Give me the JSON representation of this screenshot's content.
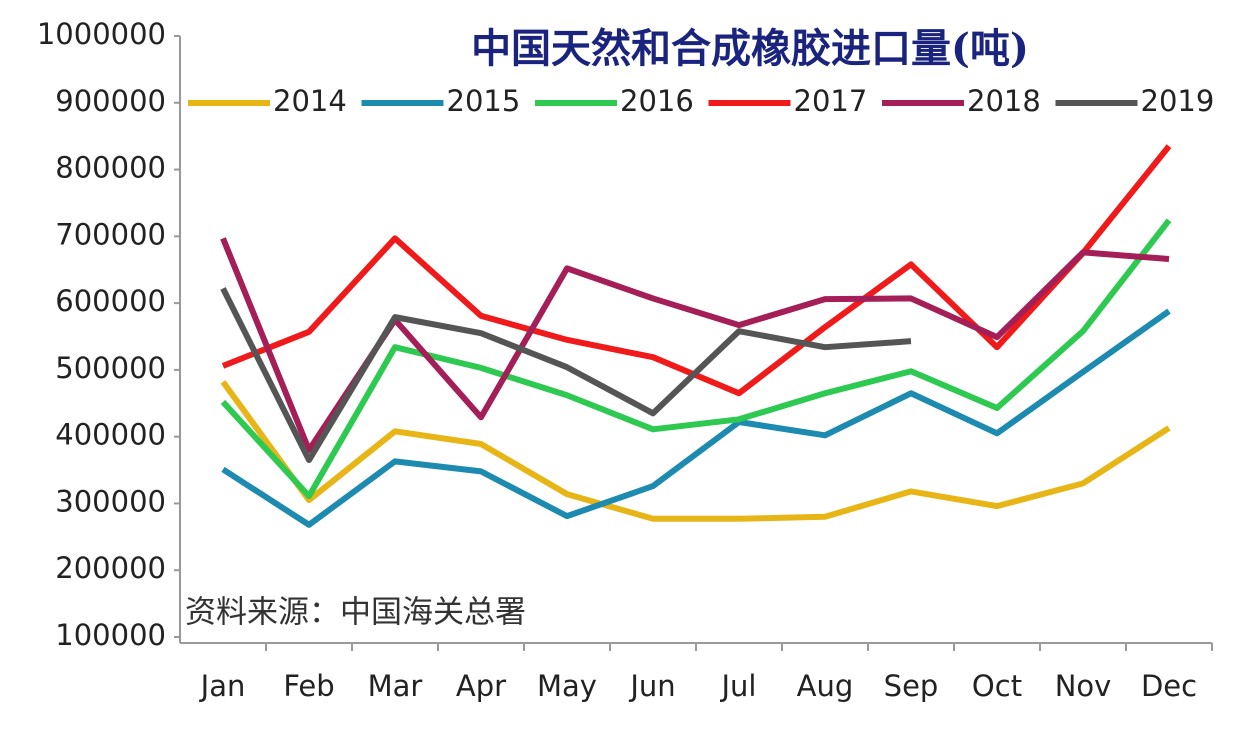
{
  "chart_data": {
    "type": "line",
    "title": "中国天然和合成橡胶进口量(吨)",
    "annotation": "资料来源：中国海关总署",
    "categories": [
      "Jan",
      "Feb",
      "Mar",
      "Apr",
      "May",
      "Jun",
      "Jul",
      "Aug",
      "Sep",
      "Oct",
      "Nov",
      "Dec"
    ],
    "ylim": [
      100000,
      1000000
    ],
    "yticks": [
      100000,
      200000,
      300000,
      400000,
      500000,
      600000,
      700000,
      800000,
      900000,
      1000000
    ],
    "grid": false,
    "legend": "top",
    "series": [
      {
        "name": "2014",
        "color": "#e8b517",
        "values": [
          482000,
          305000,
          408000,
          389000,
          314000,
          277000,
          277000,
          280000,
          318000,
          296000,
          330000,
          413000
        ]
      },
      {
        "name": "2015",
        "color": "#1d8bb0",
        "values": [
          351000,
          268000,
          363000,
          348000,
          281000,
          326000,
          422000,
          402000,
          465000,
          405000,
          497000,
          588000
        ]
      },
      {
        "name": "2016",
        "color": "#2ec950",
        "values": [
          452000,
          311000,
          534000,
          503000,
          462000,
          411000,
          426000,
          465000,
          498000,
          443000,
          558000,
          724000
        ]
      },
      {
        "name": "2017",
        "color": "#f01a1a",
        "values": [
          506000,
          557000,
          697000,
          581000,
          545000,
          519000,
          465000,
          564000,
          658000,
          534000,
          675000,
          835000
        ]
      },
      {
        "name": "2018",
        "color": "#a41f57",
        "values": [
          697000,
          380000,
          575000,
          429000,
          652000,
          607000,
          567000,
          606000,
          607000,
          549000,
          676000,
          666000
        ]
      },
      {
        "name": "2019",
        "color": "#555555",
        "values": [
          622000,
          365000,
          579000,
          555000,
          504000,
          435000,
          558000,
          534000,
          543000,
          null,
          null,
          null
        ]
      }
    ]
  }
}
